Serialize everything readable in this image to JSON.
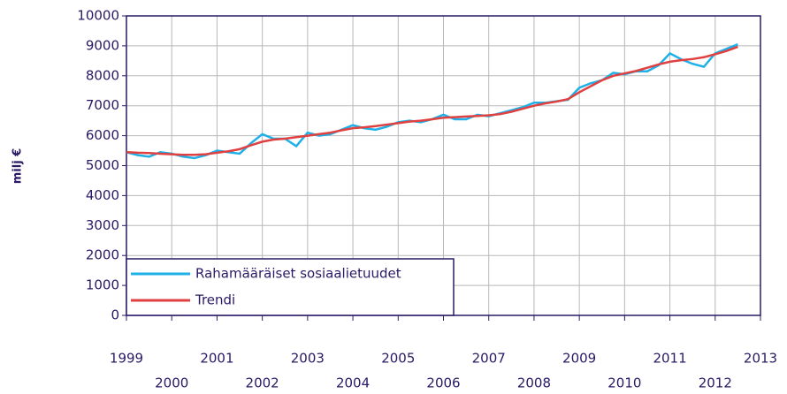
{
  "chart_data": {
    "type": "line",
    "y_label": "milj €",
    "x": [
      1999,
      1999.25,
      1999.5,
      1999.75,
      2000,
      2000.25,
      2000.5,
      2000.75,
      2001,
      2001.25,
      2001.5,
      2001.75,
      2002,
      2002.25,
      2002.5,
      2002.75,
      2003,
      2003.25,
      2003.5,
      2003.75,
      2004,
      2004.25,
      2004.5,
      2004.75,
      2005,
      2005.25,
      2005.5,
      2005.75,
      2006,
      2006.25,
      2006.5,
      2006.75,
      2007,
      2007.25,
      2007.5,
      2007.75,
      2008,
      2008.25,
      2008.5,
      2008.75,
      2009,
      2009.25,
      2009.5,
      2009.75,
      2010,
      2010.25,
      2010.5,
      2010.75,
      2011,
      2011.25,
      2011.5,
      2011.75,
      2012,
      2012.25,
      2012.5
    ],
    "series": [
      {
        "name": "Rahamääräiset sosiaalietuudet",
        "color": "#1fb0e8",
        "values": [
          5450,
          5350,
          5300,
          5450,
          5400,
          5300,
          5250,
          5350,
          5500,
          5450,
          5400,
          5750,
          6050,
          5900,
          5900,
          5650,
          6100,
          6000,
          6050,
          6200,
          6350,
          6250,
          6200,
          6300,
          6450,
          6500,
          6450,
          6550,
          6700,
          6550,
          6550,
          6700,
          6650,
          6750,
          6850,
          6950,
          7100,
          7100,
          7150,
          7200,
          7600,
          7750,
          7850,
          8100,
          8050,
          8150,
          8150,
          8350,
          8750,
          8550,
          8400,
          8300,
          8750,
          8900,
          9050
        ]
      },
      {
        "name": "Trendi",
        "color": "#e04040",
        "values": [
          5450,
          5430,
          5420,
          5400,
          5380,
          5360,
          5360,
          5380,
          5430,
          5480,
          5550,
          5680,
          5800,
          5870,
          5900,
          5950,
          6000,
          6050,
          6100,
          6180,
          6250,
          6280,
          6320,
          6370,
          6420,
          6470,
          6500,
          6550,
          6600,
          6620,
          6640,
          6660,
          6680,
          6720,
          6800,
          6900,
          7000,
          7080,
          7140,
          7220,
          7450,
          7650,
          7850,
          8000,
          8080,
          8160,
          8270,
          8380,
          8470,
          8520,
          8560,
          8620,
          8720,
          8830,
          8970
        ]
      }
    ],
    "xlim": [
      1999,
      2013
    ],
    "xticks": [
      1999,
      2000,
      2001,
      2002,
      2003,
      2004,
      2005,
      2006,
      2007,
      2008,
      2009,
      2010,
      2011,
      2012,
      2013
    ],
    "ylim": [
      0,
      10000
    ],
    "yticks": [
      0,
      1000,
      2000,
      3000,
      4000,
      5000,
      6000,
      7000,
      8000,
      9000,
      10000
    ],
    "grid": true,
    "legend": "lower left"
  }
}
